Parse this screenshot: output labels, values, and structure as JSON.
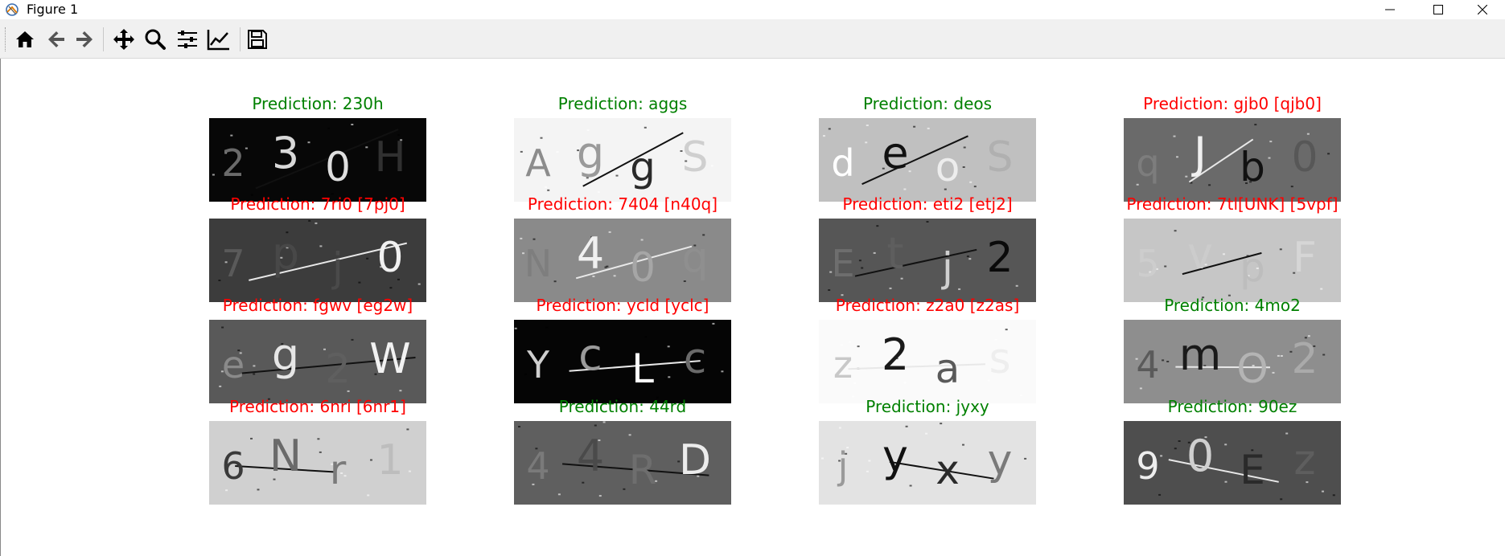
{
  "window": {
    "title": "Figure 1",
    "controls": [
      "minimize",
      "maximize",
      "close"
    ]
  },
  "toolbar": {
    "buttons": [
      {
        "name": "home",
        "icon": "home-icon"
      },
      {
        "name": "back",
        "icon": "back-arrow-icon"
      },
      {
        "name": "forward",
        "icon": "forward-arrow-icon"
      },
      {
        "name": "pan",
        "icon": "move-icon"
      },
      {
        "name": "zoom",
        "icon": "zoom-icon"
      },
      {
        "name": "configure-subplots",
        "icon": "sliders-icon"
      },
      {
        "name": "edit-axes",
        "icon": "chart-line-icon"
      },
      {
        "name": "save",
        "icon": "save-icon"
      }
    ]
  },
  "colors": {
    "correct": "#008000",
    "incorrect": "#ff0000"
  },
  "panels": [
    {
      "title": "Prediction: 230h",
      "status": "correct",
      "bg": "#070707",
      "glyphs": [
        {
          "t": "2",
          "c": "#6a6a6a"
        },
        {
          "t": "3",
          "c": "#d8d8d8"
        },
        {
          "t": "0",
          "c": "#dedede"
        },
        {
          "t": "H",
          "c": "#303030"
        }
      ]
    },
    {
      "title": "Prediction: aggs",
      "status": "correct",
      "bg": "#f4f4f4",
      "glyphs": [
        {
          "t": "A",
          "c": "#8c8c8c"
        },
        {
          "t": "g",
          "c": "#9a9a9a"
        },
        {
          "t": "g",
          "c": "#2a2a2a"
        },
        {
          "t": "S",
          "c": "#cfcfcf"
        }
      ]
    },
    {
      "title": "Prediction: deos",
      "status": "correct",
      "bg": "#c0c0c0",
      "glyphs": [
        {
          "t": "d",
          "c": "#ffffff"
        },
        {
          "t": "e",
          "c": "#111111"
        },
        {
          "t": "o",
          "c": "#ededed"
        },
        {
          "t": "S",
          "c": "#b0b0b0"
        }
      ]
    },
    {
      "title": "Prediction: gjb0 [qjb0]",
      "status": "incorrect",
      "bg": "#6a6a6a",
      "glyphs": [
        {
          "t": "q",
          "c": "#7d7d7d"
        },
        {
          "t": "J",
          "c": "#f0f0f0"
        },
        {
          "t": "b",
          "c": "#111111"
        },
        {
          "t": "0",
          "c": "#575757"
        }
      ]
    },
    {
      "title": "Prediction: 7ri0 [7pj0]",
      "status": "incorrect",
      "bg": "#3c3c3c",
      "glyphs": [
        {
          "t": "7",
          "c": "#5a5a5a"
        },
        {
          "t": "p",
          "c": "#484848"
        },
        {
          "t": "j",
          "c": "#4a4a4a"
        },
        {
          "t": "0",
          "c": "#f0f0f0"
        }
      ]
    },
    {
      "title": "Prediction: 7404 [n40q]",
      "status": "incorrect",
      "bg": "#8a8a8a",
      "glyphs": [
        {
          "t": "N",
          "c": "#7e7e7e"
        },
        {
          "t": "4",
          "c": "#f0f0f0"
        },
        {
          "t": "0",
          "c": "#a6a6a6"
        },
        {
          "t": "q",
          "c": "#8f8f8f"
        }
      ]
    },
    {
      "title": "Prediction: eti2 [etj2]",
      "status": "incorrect",
      "bg": "#565656",
      "glyphs": [
        {
          "t": "E",
          "c": "#6e6e6e"
        },
        {
          "t": "t",
          "c": "#5e5e5e"
        },
        {
          "t": "j",
          "c": "#d0d0d0"
        },
        {
          "t": "2",
          "c": "#0a0a0a"
        }
      ]
    },
    {
      "title": "Prediction: 7tl[UNK] [5vpf]",
      "status": "incorrect",
      "bg": "#c6c6c6",
      "glyphs": [
        {
          "t": "5",
          "c": "#cdcdcd"
        },
        {
          "t": "v",
          "c": "#cccccc"
        },
        {
          "t": "p",
          "c": "#bdbdbd"
        },
        {
          "t": "F",
          "c": "#d6d6d6"
        }
      ]
    },
    {
      "title": "Prediction: fgwv [eg2w]",
      "status": "incorrect",
      "bg": "#595959",
      "glyphs": [
        {
          "t": "e",
          "c": "#8a8a8a"
        },
        {
          "t": "g",
          "c": "#e6e6e6"
        },
        {
          "t": "2",
          "c": "#5f5f5f"
        },
        {
          "t": "W",
          "c": "#f2f2f2"
        }
      ]
    },
    {
      "title": "Prediction: ycld [yclc]",
      "status": "incorrect",
      "bg": "#050505",
      "glyphs": [
        {
          "t": "Y",
          "c": "#cfcfcf"
        },
        {
          "t": "c",
          "c": "#9a9a9a"
        },
        {
          "t": "L",
          "c": "#ffffff"
        },
        {
          "t": "c",
          "c": "#6a6a6a"
        }
      ]
    },
    {
      "title": "Prediction: z2a0 [z2as]",
      "status": "incorrect",
      "bg": "#fafafa",
      "glyphs": [
        {
          "t": "z",
          "c": "#c8c8c8"
        },
        {
          "t": "2",
          "c": "#1a1a1a"
        },
        {
          "t": "a",
          "c": "#5a5a5a"
        },
        {
          "t": "s",
          "c": "#eeeeee"
        }
      ]
    },
    {
      "title": "Prediction: 4mo2",
      "status": "correct",
      "bg": "#8e8e8e",
      "glyphs": [
        {
          "t": "4",
          "c": "#5a5a5a"
        },
        {
          "t": "m",
          "c": "#1a1a1a"
        },
        {
          "t": "O",
          "c": "#b4b4b4"
        },
        {
          "t": "2",
          "c": "#aaaaaa"
        }
      ]
    },
    {
      "title": "Prediction: 6nri [6nr1]",
      "status": "incorrect",
      "bg": "#d0d0d0",
      "glyphs": [
        {
          "t": "6",
          "c": "#3a3a3a"
        },
        {
          "t": "N",
          "c": "#6a6a6a"
        },
        {
          "t": "r",
          "c": "#7a7a7a"
        },
        {
          "t": "1",
          "c": "#bdbdbd"
        }
      ]
    },
    {
      "title": "Prediction: 44rd",
      "status": "correct",
      "bg": "#5f5f5f",
      "glyphs": [
        {
          "t": "4",
          "c": "#7a7a7a"
        },
        {
          "t": "4",
          "c": "#4a4a4a"
        },
        {
          "t": "R",
          "c": "#6e6e6e"
        },
        {
          "t": "D",
          "c": "#ececec"
        }
      ]
    },
    {
      "title": "Prediction: jyxy",
      "status": "correct",
      "bg": "#e3e3e3",
      "glyphs": [
        {
          "t": "j",
          "c": "#9a9a9a"
        },
        {
          "t": "y",
          "c": "#111111"
        },
        {
          "t": "x",
          "c": "#2a2a2a"
        },
        {
          "t": "y",
          "c": "#7a7a7a"
        }
      ]
    },
    {
      "title": "Prediction: 90ez",
      "status": "correct",
      "bg": "#4e4e4e",
      "glyphs": [
        {
          "t": "9",
          "c": "#eeeeee"
        },
        {
          "t": "0",
          "c": "#cfcfcf"
        },
        {
          "t": "E",
          "c": "#2a2a2a"
        },
        {
          "t": "z",
          "c": "#5e5e5e"
        }
      ]
    }
  ]
}
